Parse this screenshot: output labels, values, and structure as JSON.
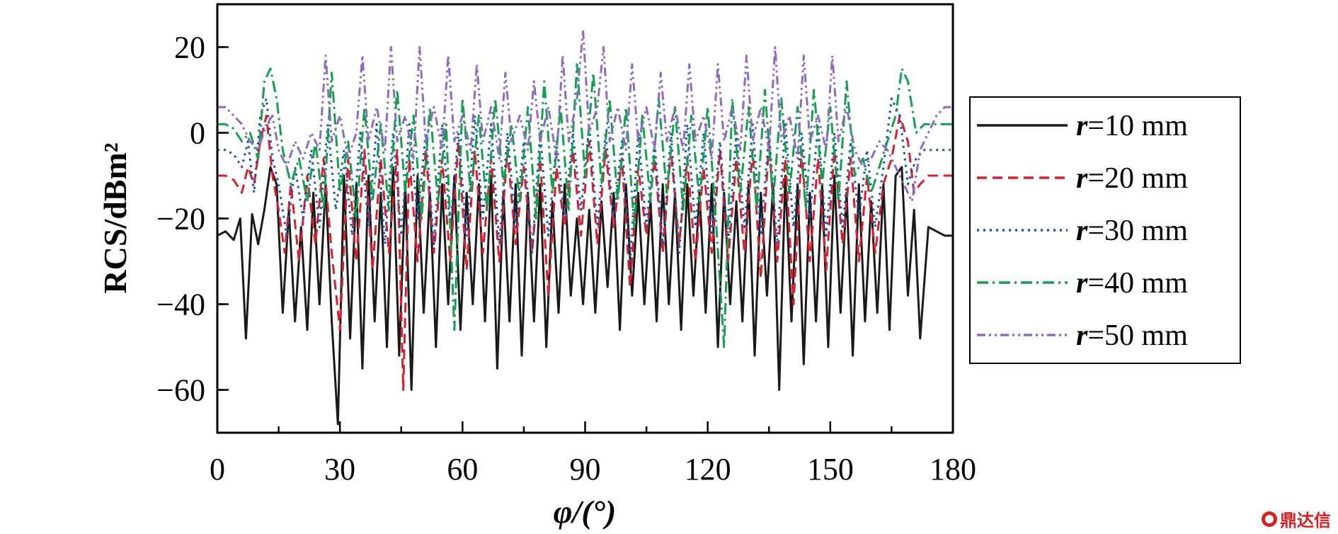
{
  "chart_data": {
    "type": "line",
    "title": "",
    "xlabel": "φ/(°)",
    "ylabel": "RCS/dBm²",
    "xlim": [
      0,
      180
    ],
    "ylim": [
      -70,
      30
    ],
    "xticks": [
      "0",
      "30",
      "60",
      "90",
      "120",
      "150",
      "180"
    ],
    "yticks": [
      "20",
      "0",
      "−20",
      "−40",
      "−60"
    ],
    "legend_position": "right",
    "grid": false,
    "series": [
      {
        "name": "r=10 mm",
        "label_var": "r",
        "label_rest": "=10 mm",
        "color": "#1a1a1a",
        "dash": "none",
        "x": [
          0,
          2,
          4,
          5.6,
          7,
          8.5,
          10,
          11.5,
          13,
          14.5,
          16,
          17.5,
          19,
          20.5,
          22,
          23.5,
          25,
          26.5,
          28,
          29.5,
          31,
          32.5,
          34,
          35.5,
          37,
          38.5,
          40,
          41.5,
          43,
          44.5,
          46,
          47.5,
          49,
          50.5,
          52,
          53.5,
          55,
          56.5,
          58,
          59.5,
          61,
          62.5,
          64,
          65.5,
          67,
          68.5,
          70,
          71.5,
          73,
          74.5,
          76,
          77.5,
          79,
          80.5,
          82,
          83.5,
          85,
          86.5,
          88,
          89.5,
          91,
          92.5,
          94,
          95.5,
          97,
          98.5,
          100,
          101.5,
          103,
          104.5,
          106,
          107.5,
          109,
          110.5,
          112,
          113.5,
          115,
          116.5,
          118,
          119.5,
          121,
          122.5,
          124,
          125.5,
          127,
          128.5,
          130,
          131.5,
          133,
          134.5,
          136,
          137.5,
          139,
          140.5,
          142,
          143.5,
          145,
          146.5,
          148,
          149.5,
          151,
          152.5,
          154,
          155.5,
          157,
          158.5,
          160,
          161.5,
          163,
          164.5,
          166,
          167.5,
          169,
          170.5,
          172,
          174,
          176,
          178,
          180
        ],
        "y": [
          -24,
          -23,
          -25,
          -20,
          -48,
          -19,
          -26,
          -18,
          -8,
          -12,
          -42,
          -18,
          -44,
          -22,
          -46,
          -14,
          -40,
          -12,
          -44,
          -68,
          -10,
          -48,
          -12,
          -55,
          -10,
          -44,
          -14,
          -50,
          -8,
          -52,
          -12,
          -60,
          -10,
          -42,
          -14,
          -50,
          -12,
          -40,
          -10,
          -46,
          -14,
          -40,
          -12,
          -44,
          -10,
          -55,
          -14,
          -44,
          -12,
          -52,
          -14,
          -44,
          -12,
          -50,
          -16,
          -42,
          -12,
          -38,
          -20,
          -40,
          -18,
          -42,
          -16,
          -36,
          -14,
          -46,
          -12,
          -38,
          -14,
          -40,
          -16,
          -44,
          -12,
          -40,
          -14,
          -46,
          -12,
          -38,
          -14,
          -42,
          -12,
          -50,
          -14,
          -40,
          -16,
          -44,
          -12,
          -52,
          -14,
          -38,
          -12,
          -60,
          -10,
          -44,
          -12,
          -54,
          -14,
          -44,
          -12,
          -50,
          -10,
          -42,
          -14,
          -52,
          -12,
          -44,
          -16,
          -42,
          -12,
          -46,
          -10,
          -8,
          -38,
          -18,
          -48,
          -22,
          -23,
          -24,
          -24
        ]
      },
      {
        "name": "r=20 mm",
        "label_var": "r",
        "label_rest": "=20 mm",
        "color": "#d42030",
        "dash": "14,8",
        "x": [
          0,
          2,
          4,
          6,
          7.5,
          9,
          10.5,
          12,
          13.5,
          15,
          16.5,
          18,
          20,
          22,
          24,
          26,
          28,
          30,
          32,
          34,
          36,
          38,
          40,
          42,
          44,
          45.5,
          47,
          49,
          51,
          53,
          55,
          57,
          59,
          61,
          63,
          65,
          67,
          69,
          71,
          73,
          75,
          77,
          79,
          81,
          83,
          85,
          87,
          89,
          91,
          93,
          95,
          97,
          99,
          101,
          103,
          105,
          107,
          109,
          111,
          113,
          115,
          117,
          119,
          121,
          123,
          125,
          127,
          129,
          131,
          133,
          135,
          137,
          139,
          141,
          143,
          145,
          147,
          149,
          151,
          153,
          155,
          157,
          159,
          161,
          163,
          165,
          167,
          169,
          170.5,
          172,
          174,
          176,
          178,
          180
        ],
        "y": [
          -10,
          -10,
          -11,
          -14,
          -8,
          -12,
          -2,
          4,
          -10,
          -18,
          -28,
          -12,
          -30,
          -10,
          -26,
          -6,
          -28,
          -46,
          -6,
          -30,
          -4,
          -32,
          -6,
          -28,
          -4,
          -60,
          -6,
          -30,
          -4,
          -28,
          -6,
          -30,
          -2,
          -32,
          -4,
          -28,
          -6,
          -30,
          -4,
          -26,
          -8,
          -28,
          -6,
          -38,
          -8,
          -22,
          -4,
          -24,
          -2,
          -26,
          -4,
          -22,
          -6,
          -36,
          -8,
          -24,
          -6,
          -28,
          -4,
          -26,
          -6,
          -30,
          -8,
          -28,
          -4,
          -30,
          -6,
          -28,
          -4,
          -34,
          -2,
          -30,
          -6,
          -40,
          -4,
          -30,
          -6,
          -32,
          -4,
          -26,
          -6,
          -30,
          -10,
          -28,
          -12,
          -6,
          4,
          -2,
          -14,
          -12,
          -10,
          -10,
          -10,
          -10
        ]
      },
      {
        "name": "r=30 mm",
        "label_var": "r",
        "label_rest": "=30 mm",
        "color": "#1a56a8",
        "dash": "3,6",
        "x": [
          0,
          2,
          4,
          6,
          7.5,
          9,
          10.5,
          12,
          13.5,
          15,
          17,
          19,
          21,
          23,
          25,
          27,
          29,
          31,
          33,
          35,
          37,
          39,
          41,
          43,
          45,
          47,
          49,
          51,
          53,
          55,
          57,
          59,
          61,
          63,
          65,
          67,
          69,
          71,
          73,
          75,
          77,
          79,
          81,
          83,
          85,
          87,
          89,
          91,
          93,
          95,
          97,
          99,
          101,
          103,
          105,
          107,
          109,
          111,
          113,
          115,
          117,
          119,
          121,
          123,
          125,
          127,
          129,
          131,
          133,
          135,
          137,
          139,
          141,
          143,
          145,
          147,
          149,
          151,
          153,
          155,
          157,
          159,
          161,
          163,
          165,
          167,
          169,
          171,
          173,
          175,
          177,
          180
        ],
        "y": [
          -4,
          -4,
          -5,
          -8,
          -2,
          -14,
          4,
          8,
          -6,
          -12,
          -24,
          -8,
          -20,
          -4,
          -22,
          2,
          -18,
          -4,
          -24,
          0,
          -22,
          2,
          -26,
          0,
          -24,
          2,
          -20,
          0,
          -26,
          2,
          -22,
          0,
          -24,
          4,
          -20,
          2,
          -26,
          0,
          -22,
          -2,
          -28,
          0,
          -24,
          -2,
          -20,
          0,
          -18,
          2,
          -22,
          0,
          -20,
          -2,
          -30,
          0,
          -22,
          -2,
          -26,
          0,
          -28,
          2,
          -22,
          0,
          -24,
          -2,
          -26,
          0,
          -22,
          2,
          -24,
          0,
          -26,
          2,
          -22,
          0,
          -20,
          2,
          -24,
          0,
          -22,
          -2,
          -20,
          -4,
          -22,
          -8,
          8,
          4,
          -12,
          -6,
          -4,
          -4,
          -4,
          -4
        ]
      },
      {
        "name": "r=40 mm",
        "label_var": "r",
        "label_rest": "=40 mm",
        "color": "#14a050",
        "dash": "16,6,3,6",
        "x": [
          0,
          2,
          4,
          6,
          8,
          10,
          11.5,
          13,
          14.5,
          16,
          18,
          20,
          22,
          24,
          26,
          28,
          30,
          32,
          34,
          36,
          38,
          40,
          42,
          44,
          46,
          48,
          50,
          52,
          54,
          56,
          58,
          60,
          62,
          64,
          66,
          68,
          70,
          72,
          74,
          76,
          78,
          80,
          82,
          84,
          86,
          88,
          90,
          92,
          94,
          96,
          98,
          100,
          102,
          104,
          106,
          108,
          110,
          112,
          114,
          116,
          118,
          120,
          122,
          124,
          126,
          128,
          130,
          132,
          134,
          136,
          138,
          140,
          142,
          144,
          146,
          148,
          150,
          152,
          154,
          156,
          158,
          160,
          162,
          164,
          166,
          167.5,
          169,
          171,
          173,
          175,
          177,
          180
        ],
        "y": [
          2,
          2,
          1,
          -2,
          0,
          -6,
          12,
          15,
          8,
          -4,
          -12,
          -6,
          -16,
          -2,
          -18,
          14,
          -14,
          -2,
          -20,
          6,
          -16,
          2,
          -18,
          10,
          -14,
          4,
          -20,
          6,
          -16,
          2,
          -46,
          8,
          -14,
          4,
          -18,
          8,
          -12,
          2,
          -16,
          6,
          -20,
          12,
          -14,
          6,
          -18,
          16,
          -10,
          14,
          -12,
          8,
          -16,
          6,
          -22,
          4,
          -16,
          8,
          -14,
          6,
          -18,
          4,
          -16,
          6,
          -20,
          -50,
          8,
          -14,
          6,
          -18,
          10,
          -16,
          8,
          -14,
          6,
          -18,
          10,
          -12,
          6,
          -16,
          12,
          -10,
          -6,
          -14,
          -8,
          -2,
          4,
          15,
          12,
          0,
          2,
          2,
          2,
          2
        ]
      },
      {
        "name": "r=50 mm",
        "label_var": "r",
        "label_rest": "=50 mm",
        "color": "#8c6cc0",
        "dash": "12,5,3,5,3,5",
        "x": [
          0,
          2,
          4,
          6,
          8,
          10,
          12,
          13.5,
          15,
          17,
          19,
          21,
          23,
          25,
          26.5,
          28,
          30,
          32,
          34,
          35.5,
          37,
          39,
          41,
          42.5,
          44,
          46,
          48,
          49.5,
          51,
          53,
          55,
          56.5,
          58,
          60,
          62,
          63.5,
          65,
          67,
          69,
          70.5,
          72,
          74,
          76,
          77.5,
          79,
          81,
          83,
          84.5,
          86,
          88,
          89.5,
          91,
          93,
          94.5,
          96,
          98,
          100,
          101.5,
          103,
          105,
          107,
          108.5,
          110,
          112,
          114,
          115.5,
          117,
          119,
          121,
          122.5,
          124,
          126,
          128,
          129.5,
          131,
          133,
          135,
          136.5,
          138,
          140,
          142,
          143.5,
          145,
          147,
          149,
          150.5,
          152,
          154,
          156,
          158,
          160,
          162,
          164,
          166,
          168,
          170,
          172,
          174,
          176,
          178,
          180
        ],
        "y": [
          6,
          6,
          4,
          2,
          -2,
          -4,
          2,
          4,
          -4,
          -8,
          -2,
          -6,
          0,
          -4,
          18,
          -2,
          4,
          -6,
          0,
          18,
          -2,
          6,
          -4,
          20,
          -2,
          4,
          -6,
          20,
          -2,
          6,
          -4,
          18,
          -2,
          4,
          -4,
          16,
          -2,
          6,
          -6,
          14,
          -2,
          4,
          -4,
          12,
          -2,
          6,
          -6,
          18,
          -2,
          8,
          24,
          0,
          6,
          20,
          -2,
          6,
          -4,
          16,
          -2,
          6,
          -4,
          14,
          -2,
          6,
          -4,
          16,
          -2,
          4,
          -6,
          16,
          -2,
          6,
          -4,
          18,
          -2,
          6,
          -4,
          20,
          -2,
          4,
          -6,
          18,
          -2,
          4,
          -4,
          18,
          -2,
          6,
          -4,
          -8,
          -6,
          -2,
          -4,
          -8,
          -12,
          -16,
          -4,
          0,
          4,
          6,
          6
        ]
      }
    ]
  },
  "watermark": {
    "text": "鼎达信"
  }
}
